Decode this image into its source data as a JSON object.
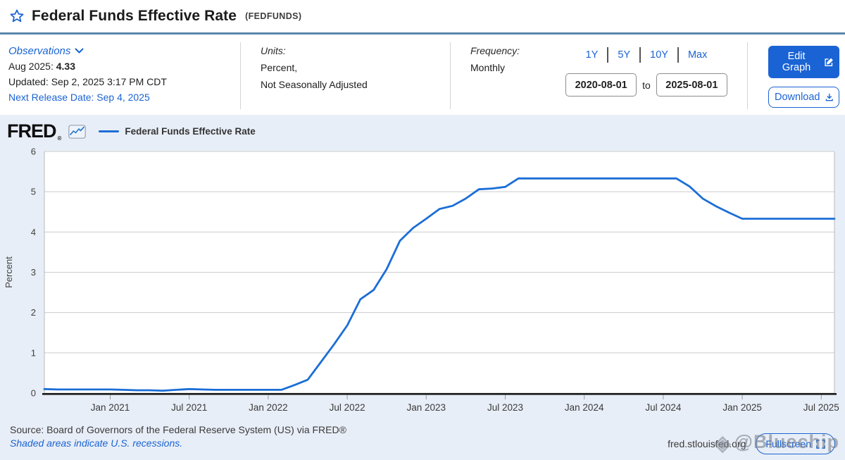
{
  "header": {
    "title": "Federal Funds Effective Rate",
    "ticker": "(FEDFUNDS)"
  },
  "meta": {
    "observations": {
      "label": "Observations",
      "latest_label": "Aug 2025:",
      "latest_value": "4.33",
      "updated": "Updated: Sep 2, 2025 3:17 PM CDT",
      "next_release": "Next Release Date: Sep 4, 2025"
    },
    "units": {
      "label": "Units:",
      "line1": "Percent,",
      "line2": "Not Seasonally Adjusted"
    },
    "frequency": {
      "label": "Frequency:",
      "value": "Monthly"
    },
    "range": {
      "presets": [
        "1Y",
        "5Y",
        "10Y",
        "Max"
      ],
      "start": "2020-08-01",
      "to_label": "to",
      "end": "2025-08-01"
    },
    "actions": {
      "edit": "Edit Graph",
      "download": "Download"
    }
  },
  "graph": {
    "logo": "FRED",
    "logo_mark": "®",
    "legend": "Federal Funds Effective Rate"
  },
  "chart_data": {
    "type": "line",
    "title": "Federal Funds Effective Rate",
    "xlabel": "",
    "ylabel": "Percent",
    "ylim": [
      0,
      6
    ],
    "yticks": [
      0,
      1,
      2,
      3,
      4,
      5,
      6
    ],
    "grid": "horizontal",
    "legend_position": "top-left",
    "x_tick_labels": [
      "Jan 2021",
      "Jul 2021",
      "Jan 2022",
      "Jul 2022",
      "Jan 2023",
      "Jul 2023",
      "Jan 2024",
      "Jul 2024",
      "Jan 2025",
      "Jul 2025"
    ],
    "months": [
      "2020-08",
      "2020-09",
      "2020-10",
      "2020-11",
      "2020-12",
      "2021-01",
      "2021-02",
      "2021-03",
      "2021-04",
      "2021-05",
      "2021-06",
      "2021-07",
      "2021-08",
      "2021-09",
      "2021-10",
      "2021-11",
      "2021-12",
      "2022-01",
      "2022-02",
      "2022-03",
      "2022-04",
      "2022-05",
      "2022-06",
      "2022-07",
      "2022-08",
      "2022-09",
      "2022-10",
      "2022-11",
      "2022-12",
      "2023-01",
      "2023-02",
      "2023-03",
      "2023-04",
      "2023-05",
      "2023-06",
      "2023-07",
      "2023-08",
      "2023-09",
      "2023-10",
      "2023-11",
      "2023-12",
      "2024-01",
      "2024-02",
      "2024-03",
      "2024-04",
      "2024-05",
      "2024-06",
      "2024-07",
      "2024-08",
      "2024-09",
      "2024-10",
      "2024-11",
      "2024-12",
      "2025-01",
      "2025-02",
      "2025-03",
      "2025-04",
      "2025-05",
      "2025-06",
      "2025-07",
      "2025-08"
    ],
    "series": [
      {
        "name": "Federal Funds Effective Rate",
        "color": "#1b6ed6",
        "values": [
          0.1,
          0.09,
          0.09,
          0.09,
          0.09,
          0.09,
          0.08,
          0.07,
          0.07,
          0.06,
          0.08,
          0.1,
          0.09,
          0.08,
          0.08,
          0.08,
          0.08,
          0.08,
          0.08,
          0.2,
          0.33,
          0.77,
          1.21,
          1.68,
          2.33,
          2.56,
          3.08,
          3.78,
          4.1,
          4.33,
          4.57,
          4.65,
          4.83,
          5.06,
          5.08,
          5.12,
          5.33,
          5.33,
          5.33,
          5.33,
          5.33,
          5.33,
          5.33,
          5.33,
          5.33,
          5.33,
          5.33,
          5.33,
          5.33,
          5.13,
          4.83,
          4.64,
          4.48,
          4.33,
          4.33,
          4.33,
          4.33,
          4.33,
          4.33,
          4.33,
          4.33
        ]
      }
    ]
  },
  "footer": {
    "source": "Source: Board of Governors of the Federal Reserve System (US) via FRED®",
    "recessions_note": "Shaded areas indicate U.S. recessions.",
    "site": "fred.stlouisfed.org",
    "fullscreen": "Fullscreen",
    "watermark": "@Bluechip"
  },
  "colors": {
    "accent": "#1a63d4",
    "line": "#1b6ed6",
    "divider": "#5b87ab",
    "chart_bg": "#e8eef7",
    "axis": "#1a1a1a",
    "grid": "#cccccc"
  }
}
